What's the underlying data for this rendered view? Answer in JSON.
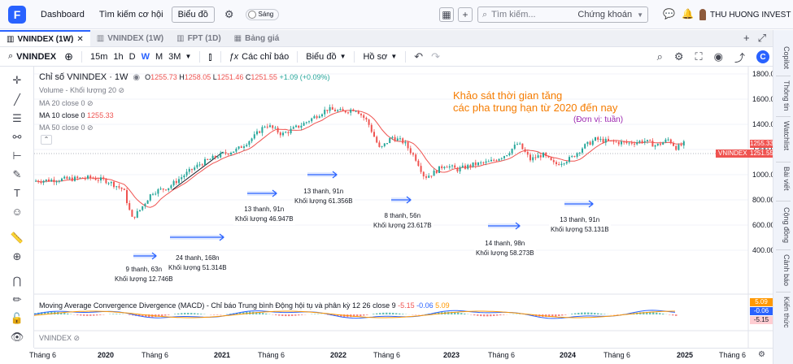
{
  "topbar": {
    "logo": "F",
    "nav": [
      "Dashboard",
      "Tìm kiếm cơ hội"
    ],
    "chart_button": "Biểu đồ",
    "theme_label": "Sáng",
    "search_placeholder": "Tìm kiếm...",
    "search_scope": "Chứng khoán",
    "user_name": "THU HUONG INVEST"
  },
  "tabs": [
    {
      "label": "VNINDEX (1W)",
      "active": true
    },
    {
      "label": "VNINDEX (1W)",
      "active": false
    },
    {
      "label": "FPT (1D)",
      "active": false
    },
    {
      "label": "Bảng giá",
      "active": false
    }
  ],
  "toolbar": {
    "symbol": "VNINDEX",
    "intervals": [
      "15m",
      "1h",
      "D",
      "W",
      "M",
      "3M"
    ],
    "active_interval": "W",
    "indicators": "Các chỉ báo",
    "chart_type": "Biểu đồ",
    "profile": "Hồ sơ"
  },
  "right_panel": [
    "Copilot",
    "Thông tin",
    "Watchlist",
    "Bài viết",
    "Cộng đồng",
    "Cảnh báo",
    "Kiến thức"
  ],
  "legend": {
    "title": "Chỉ số VNINDEX · 1W",
    "o_label": "O",
    "o": "1255.73",
    "h_label": "H",
    "h": "1258.05",
    "l_label": "L",
    "l": "1251.46",
    "c_label": "C",
    "c": "1251.55",
    "change": "+1.09 (+0.09%)",
    "lines": [
      {
        "label": "Volume - Khối lượng 20",
        "value": ""
      },
      {
        "label": "MA 20 close 0",
        "value": ""
      },
      {
        "label": "MA 10 close 0",
        "value": "1255.33"
      },
      {
        "label": "MA 50 close 0",
        "value": ""
      }
    ]
  },
  "annotation": {
    "title_line1": "Khảo sát thời gian tăng",
    "title_line2": "các pha trung hạn từ 2020 đến nay",
    "unit": "(Đơn vị: tuần)"
  },
  "phases": [
    {
      "bars": "9 thanh, 63n",
      "volume": "Khối lượng 12.746B"
    },
    {
      "bars": "24 thanh, 168n",
      "volume": "Khối lượng 51.314B"
    },
    {
      "bars": "13 thanh, 91n",
      "volume": "Khối lượng 46.947B"
    },
    {
      "bars": "13 thanh, 91n",
      "volume": "Khối lượng 61.356B"
    },
    {
      "bars": "8 thanh, 56n",
      "volume": "Khối lượng 23.617B"
    },
    {
      "bars": "14 thanh, 98n",
      "volume": "Khối lượng 58.273B"
    },
    {
      "bars": "13 thanh, 91n",
      "volume": "Khối lượng 53.131B"
    }
  ],
  "price_axis": [
    "1800.00",
    "1600.00",
    "1400.00",
    "1200.00",
    "1000.00",
    "800.00",
    "600.00",
    "400.00"
  ],
  "price_tags": {
    "ma10": "1255.33",
    "last": "1251.55",
    "symbol": "VNINDEX"
  },
  "macd": {
    "label": "Moving Average Convergence Divergence (MACD) - Chỉ báo Trung bình Động hội tụ và phân kỳ 12 26 close 9",
    "v1": "-5.15",
    "v2": "-0.06",
    "v3": "5.09",
    "tags": [
      "5.09",
      "-0.06",
      "-5.15"
    ]
  },
  "volume_label": "VNINDEX",
  "time_axis": [
    "Tháng 6",
    "2020",
    "Tháng 6",
    "2021",
    "Tháng 6",
    "2022",
    "Tháng 6",
    "2023",
    "Tháng 6",
    "2024",
    "Tháng 6",
    "2025",
    "Tháng 6"
  ],
  "colors": {
    "up": "#26a69a",
    "down": "#ef5350",
    "accent": "#2962ff",
    "annotation": "#f57c00",
    "unit": "#9c27b0"
  }
}
